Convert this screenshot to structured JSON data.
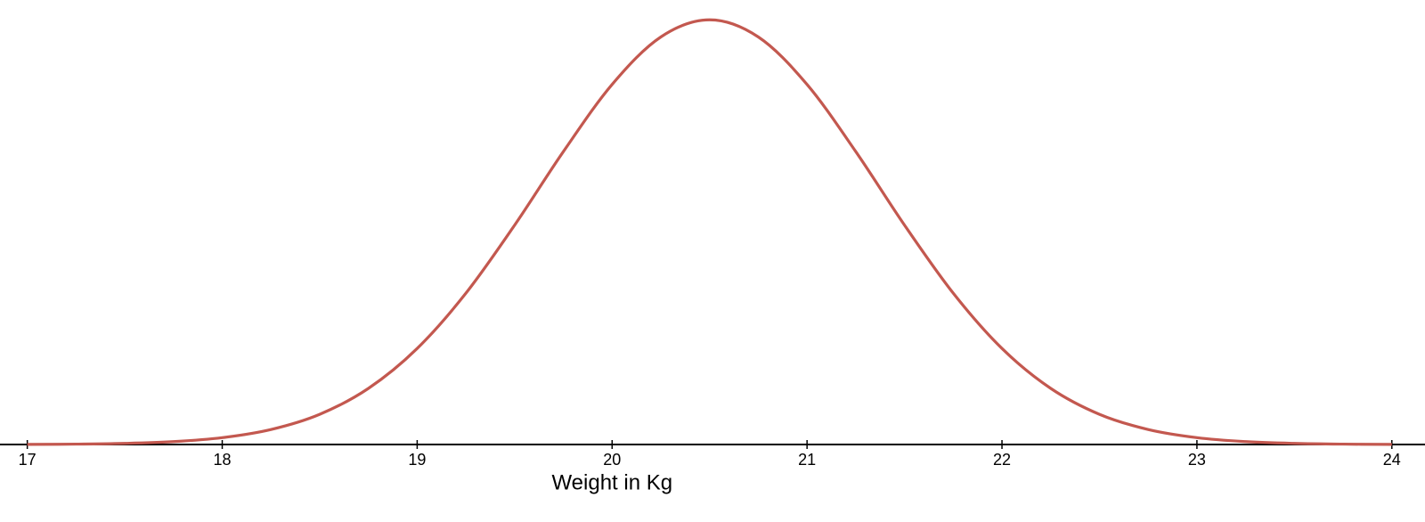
{
  "chart_data": {
    "type": "line",
    "x_label": "Weight in Kg",
    "x": [
      17,
      17.25,
      17.5,
      17.75,
      18,
      18.25,
      18.5,
      18.75,
      19,
      19.25,
      19.5,
      19.75,
      20,
      20.25,
      20.5,
      20.75,
      21,
      21.25,
      21.5,
      21.75,
      22,
      22.25,
      22.5,
      22.75,
      23,
      23.25,
      23.5,
      23.75,
      24
    ],
    "series": [
      {
        "color": "#c3584f",
        "values": [
          0.0001,
          0.0004,
          0.0012,
          0.0031,
          0.0074,
          0.0162,
          0.0326,
          0.0606,
          0.1037,
          0.1634,
          0.2369,
          0.3163,
          0.3888,
          0.4401,
          0.4586,
          0.4401,
          0.3888,
          0.3163,
          0.2369,
          0.1634,
          0.1037,
          0.0606,
          0.0326,
          0.0162,
          0.0074,
          0.0031,
          0.0012,
          0.0004,
          0.0001
        ]
      }
    ],
    "xlim": [
      16.86,
      24.17
    ],
    "xticks": [
      17,
      18,
      19,
      20,
      21,
      22,
      23,
      24
    ],
    "ylim": [
      0,
      0.48
    ]
  }
}
